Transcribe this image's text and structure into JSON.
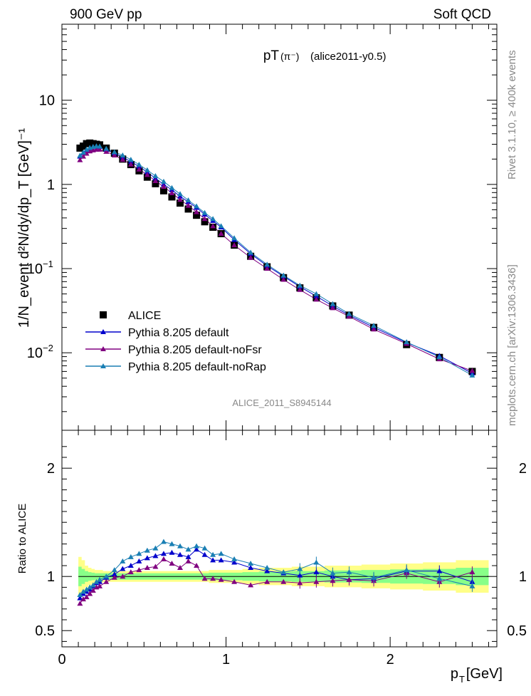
{
  "header": {
    "left": "900 GeV pp",
    "right": "Soft QCD"
  },
  "side_labels": {
    "rivet": "Rivet 3.1.10, ≥ 400k events",
    "mcplots": "mcplots.cern.ch [arXiv:1306.3436]"
  },
  "colors": {
    "data": "#000000",
    "default": "#0000cc",
    "noFsr": "#800080",
    "noRap": "#1a7fb4",
    "band_outer": "#ffff88",
    "band_inner": "#88ff88"
  },
  "chart_data": [
    {
      "type": "scatter",
      "title": "pT(π⁻) (alice2011-y0.5)",
      "title_main": "pT",
      "title_paren": "(π⁻)",
      "title_tag": "(alice2011-y0.5)",
      "analysis": "ALICE_2011_S8945144",
      "ylabel": "1/N_event d²N/dy/dp_T [GeV]⁻¹",
      "yscale": "log",
      "ylim": [
        0.0012,
        80
      ],
      "xlim": [
        0,
        2.65
      ],
      "yticks": [
        {
          "v": 0.01,
          "base": "10",
          "exp": "−2"
        },
        {
          "v": 0.1,
          "base": "10",
          "exp": "−1"
        },
        {
          "v": 1,
          "label": "1"
        },
        {
          "v": 10,
          "label": "10"
        }
      ],
      "legend_position": "bottom-left",
      "legend": [
        {
          "name": "ALICE",
          "marker": "square",
          "series": "data"
        },
        {
          "name": "Pythia 8.205 default",
          "marker": "triangle",
          "series": "default"
        },
        {
          "name": "Pythia 8.205 default-noFsr",
          "marker": "triangle",
          "series": "noFsr"
        },
        {
          "name": "Pythia 8.205 default-noRap",
          "marker": "triangle",
          "series": "noRap"
        }
      ],
      "x": [
        0.11,
        0.13,
        0.15,
        0.17,
        0.19,
        0.21,
        0.23,
        0.27,
        0.32,
        0.37,
        0.42,
        0.47,
        0.52,
        0.57,
        0.62,
        0.67,
        0.72,
        0.77,
        0.82,
        0.87,
        0.92,
        0.97,
        1.05,
        1.15,
        1.25,
        1.35,
        1.45,
        1.55,
        1.65,
        1.75,
        1.9,
        2.1,
        2.3,
        2.5
      ],
      "series": [
        {
          "name": "ALICE",
          "key": "data",
          "values": [
            2.7,
            2.85,
            3.05,
            3.1,
            3.05,
            3.0,
            2.95,
            2.7,
            2.35,
            2.0,
            1.72,
            1.45,
            1.22,
            1.02,
            0.84,
            0.71,
            0.6,
            0.51,
            0.43,
            0.36,
            0.31,
            0.26,
            0.19,
            0.14,
            0.105,
            0.078,
            0.059,
            0.045,
            0.036,
            0.028,
            0.02,
            0.0125,
            0.0088,
            0.006
          ]
        },
        {
          "name": "Pythia 8.205 default",
          "key": "default",
          "values": [
            2.15,
            2.37,
            2.55,
            2.7,
            2.78,
            2.82,
            2.8,
            2.6,
            2.35,
            2.1,
            1.87,
            1.63,
            1.4,
            1.18,
            1.0,
            0.86,
            0.72,
            0.62,
            0.53,
            0.44,
            0.37,
            0.31,
            0.22,
            0.15,
            0.108,
            0.081,
            0.061,
            0.047,
            0.036,
            0.028,
            0.02,
            0.0132,
            0.0092,
            0.0057
          ]
        },
        {
          "name": "Pythia 8.205 default-noFsr",
          "key": "noFsr",
          "values": [
            1.95,
            2.15,
            2.33,
            2.48,
            2.55,
            2.6,
            2.6,
            2.45,
            2.22,
            1.97,
            1.73,
            1.51,
            1.3,
            1.1,
            0.94,
            0.79,
            0.66,
            0.56,
            0.47,
            0.39,
            0.32,
            0.26,
            0.19,
            0.135,
            0.1,
            0.074,
            0.056,
            0.043,
            0.034,
            0.027,
            0.019,
            0.0128,
            0.0084,
            0.0061
          ]
        },
        {
          "name": "Pythia 8.205 default-noRap",
          "key": "noRap",
          "values": [
            2.2,
            2.4,
            2.6,
            2.73,
            2.8,
            2.85,
            2.83,
            2.66,
            2.42,
            2.22,
            1.97,
            1.72,
            1.48,
            1.26,
            1.08,
            0.91,
            0.77,
            0.65,
            0.55,
            0.46,
            0.39,
            0.32,
            0.23,
            0.155,
            0.112,
            0.083,
            0.063,
            0.05,
            0.038,
            0.029,
            0.021,
            0.0134,
            0.0089,
            0.0054
          ]
        }
      ]
    },
    {
      "type": "scatter",
      "ylabel": "Ratio to ALICE",
      "xlabel": "p_T [GeV]",
      "xlabel_main": "p",
      "xlabel_sub": "T",
      "xlabel_unit": "[GeV]",
      "ylim": [
        0.35,
        2.35
      ],
      "xlim": [
        0,
        2.65
      ],
      "xticks": [
        "0",
        "1",
        "2"
      ],
      "yticks": [
        "0.5",
        "1",
        "2"
      ],
      "x": [
        0.11,
        0.13,
        0.15,
        0.17,
        0.19,
        0.21,
        0.23,
        0.27,
        0.32,
        0.37,
        0.42,
        0.47,
        0.52,
        0.57,
        0.62,
        0.67,
        0.72,
        0.77,
        0.82,
        0.87,
        0.92,
        0.97,
        1.05,
        1.15,
        1.25,
        1.35,
        1.45,
        1.55,
        1.65,
        1.75,
        1.9,
        2.1,
        2.3,
        2.5
      ],
      "band_outer_halfwidth": [
        0.18,
        0.15,
        0.1,
        0.08,
        0.07,
        0.06,
        0.06,
        0.05,
        0.05,
        0.05,
        0.05,
        0.05,
        0.05,
        0.05,
        0.05,
        0.05,
        0.05,
        0.05,
        0.05,
        0.05,
        0.06,
        0.06,
        0.06,
        0.07,
        0.08,
        0.08,
        0.09,
        0.09,
        0.1,
        0.1,
        0.11,
        0.12,
        0.13,
        0.15
      ],
      "band_inner_halfwidth": [
        0.09,
        0.07,
        0.05,
        0.04,
        0.035,
        0.03,
        0.03,
        0.03,
        0.03,
        0.03,
        0.03,
        0.03,
        0.03,
        0.03,
        0.03,
        0.03,
        0.03,
        0.03,
        0.03,
        0.03,
        0.035,
        0.035,
        0.035,
        0.04,
        0.045,
        0.045,
        0.05,
        0.05,
        0.055,
        0.055,
        0.06,
        0.065,
        0.07,
        0.08
      ],
      "series": [
        {
          "name": "Pythia 8.205 default",
          "key": "default",
          "values": [
            0.8,
            0.84,
            0.86,
            0.88,
            0.91,
            0.94,
            0.95,
            0.99,
            1.02,
            1.07,
            1.1,
            1.14,
            1.17,
            1.19,
            1.21,
            1.22,
            1.2,
            1.18,
            1.25,
            1.2,
            1.15,
            1.15,
            1.13,
            1.08,
            1.05,
            1.03,
            1.01,
            1.04,
            1.0,
            0.97,
            0.98,
            1.05,
            1.05,
            0.95
          ]
        },
        {
          "name": "Pythia 8.205 default-noFsr",
          "key": "noFsr",
          "values": [
            0.75,
            0.79,
            0.81,
            0.84,
            0.87,
            0.9,
            0.91,
            0.95,
            0.99,
            1.0,
            1.04,
            1.06,
            1.08,
            1.09,
            1.16,
            1.12,
            1.08,
            1.14,
            1.1,
            0.98,
            0.98,
            0.97,
            0.95,
            0.92,
            0.95,
            0.95,
            0.94,
            0.95,
            0.96,
            0.97,
            0.96,
            1.03,
            0.95,
            1.04
          ]
        },
        {
          "name": "Pythia 8.205 default-noRap",
          "key": "noRap",
          "values": [
            0.83,
            0.86,
            0.88,
            0.9,
            0.92,
            0.95,
            0.97,
            1.0,
            1.06,
            1.14,
            1.18,
            1.21,
            1.24,
            1.26,
            1.32,
            1.3,
            1.28,
            1.25,
            1.28,
            1.26,
            1.2,
            1.21,
            1.16,
            1.12,
            1.08,
            1.04,
            1.07,
            1.13,
            1.03,
            1.04,
            0.99,
            1.06,
            0.98,
            0.91
          ]
        }
      ]
    }
  ]
}
